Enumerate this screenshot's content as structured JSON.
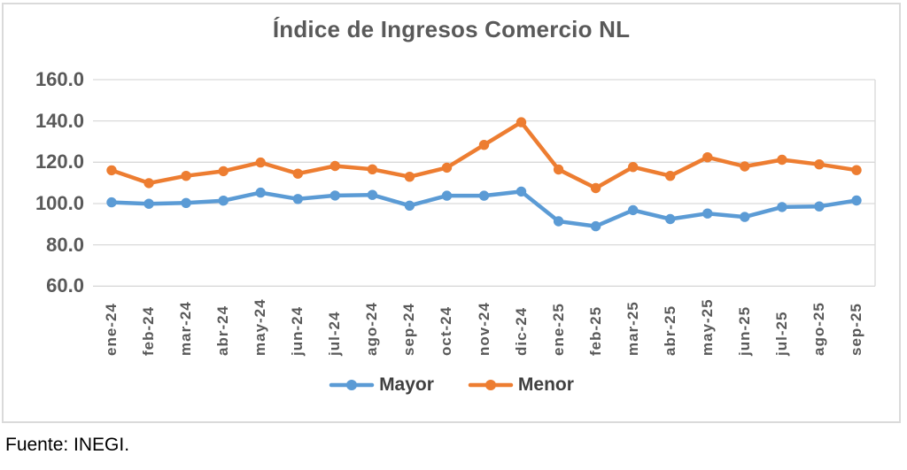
{
  "chart_data": {
    "type": "line",
    "title": "Índice de Ingresos Comercio NL",
    "categories": [
      "ene-24",
      "feb-24",
      "mar-24",
      "abr-24",
      "may-24",
      "jun-24",
      "jul-24",
      "ago-24",
      "sep-24",
      "oct-24",
      "nov-24",
      "dic-24",
      "ene-25",
      "feb-25",
      "mar-25",
      "abr-25",
      "may-25",
      "jun-25",
      "jul-25",
      "ago-25",
      "sep-25"
    ],
    "series": [
      {
        "name": "Mayor",
        "color": "#5B9BD5",
        "values": [
          100.6,
          99.9,
          100.3,
          101.4,
          105.3,
          102.2,
          103.9,
          104.2,
          99.0,
          103.8,
          103.8,
          105.8,
          91.4,
          89.0,
          96.8,
          92.5,
          95.2,
          93.5,
          98.3,
          98.6,
          101.5
        ]
      },
      {
        "name": "Menor",
        "color": "#ED7D31",
        "values": [
          116.1,
          109.9,
          113.4,
          115.7,
          119.9,
          114.5,
          118.2,
          116.6,
          113.0,
          117.4,
          128.4,
          139.4,
          116.5,
          107.5,
          117.7,
          113.4,
          122.4,
          118.0,
          121.2,
          119.0,
          116.2
        ]
      }
    ],
    "xlabel": "",
    "ylabel": "",
    "ylim": [
      60,
      160
    ],
    "y_ticks": [
      "160.0",
      "140.0",
      "120.0",
      "100.0",
      "80.0",
      "60.0"
    ],
    "grid": "horizontal",
    "legend_position": "bottom"
  },
  "source_note": "Fuente: INEGI.",
  "colors": {
    "gridline": "#D9D9D9",
    "frame_border": "#DADADA",
    "axis_text": "#595959",
    "title_text": "#595959",
    "legend_text": "#404040",
    "source_text": "#000000"
  }
}
